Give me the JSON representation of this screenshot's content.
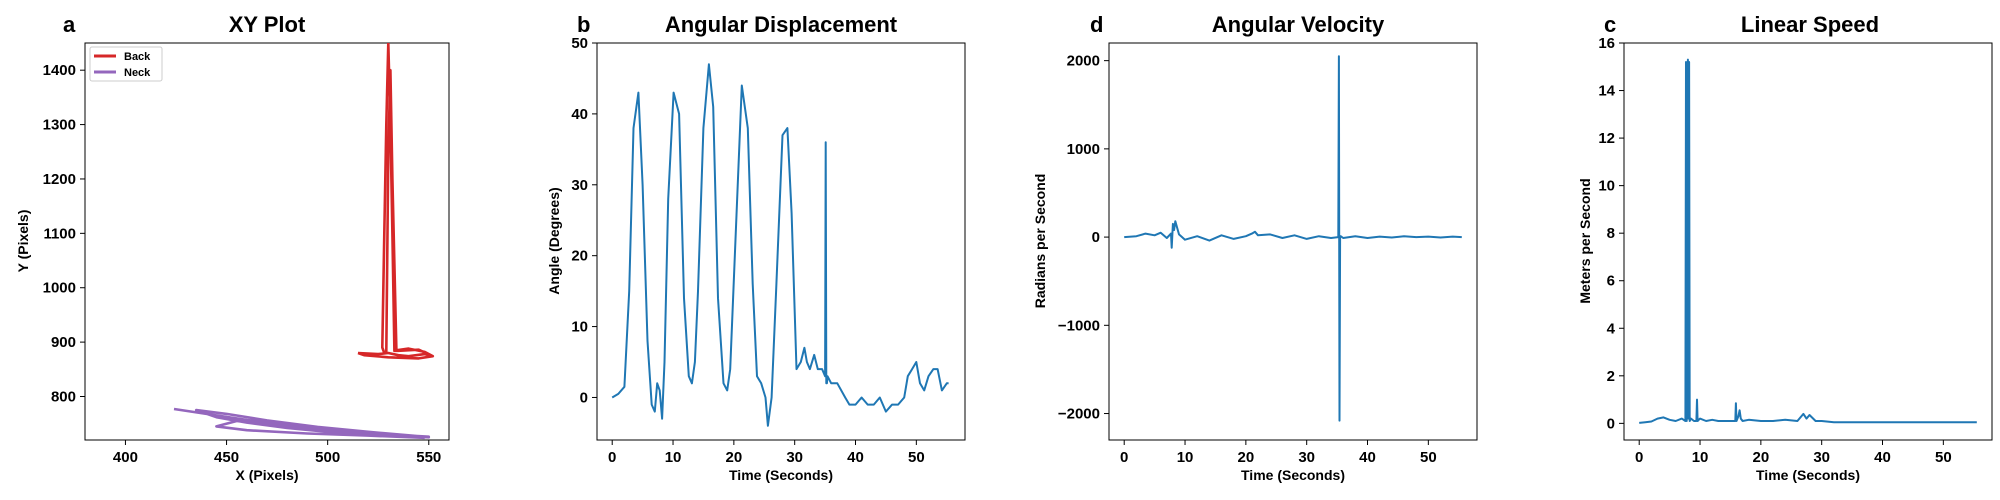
{
  "figure": {
    "panels": [
      {
        "letter": "a",
        "title": "XY Plot",
        "xlabel": "X (Pixels)",
        "ylabel": "Y (Pixels)"
      },
      {
        "letter": "b",
        "title": "Angular Displacement",
        "xlabel": "Time (Seconds)",
        "ylabel": "Angle (Degrees)"
      },
      {
        "letter": "d",
        "title": "Angular Velocity",
        "xlabel": "Time (Seconds)",
        "ylabel": "Radians per Second"
      },
      {
        "letter": "c",
        "title": "Linear Speed",
        "xlabel": "Time (Seconds)",
        "ylabel": "Meters per Second"
      }
    ],
    "legend": [
      {
        "name": "Back",
        "color": "#d62728"
      },
      {
        "name": "Neck",
        "color": "#9467bd"
      }
    ]
  },
  "chart_data": [
    {
      "type": "line",
      "title": "XY Plot",
      "xlabel": "X (Pixels)",
      "ylabel": "Y (Pixels)",
      "xlim": [
        380,
        560
      ],
      "ylim": [
        720,
        1450
      ],
      "xticks": [
        400,
        450,
        500,
        550
      ],
      "yticks": [
        800,
        900,
        1000,
        1100,
        1200,
        1300,
        1400
      ],
      "legend_position": "top-left",
      "series": [
        {
          "name": "Back",
          "color": "#d62728",
          "x": [
            515,
            525,
            530,
            535,
            540,
            548,
            552,
            545,
            535,
            533,
            532,
            531,
            530,
            529,
            528,
            527,
            528,
            529,
            530,
            531,
            532,
            534,
            540,
            548,
            552,
            545,
            530,
            518,
            515
          ],
          "y": [
            880,
            878,
            880,
            876,
            874,
            878,
            874,
            886,
            884,
            884,
            1100,
            1300,
            1450,
            1300,
            1100,
            890,
            880,
            882,
            1250,
            1400,
            1200,
            885,
            888,
            882,
            874,
            870,
            872,
            876,
            880
          ]
        },
        {
          "name": "Neck",
          "color": "#9467bd",
          "x": [
            424,
            440,
            460,
            480,
            500,
            520,
            540,
            550,
            530,
            500,
            480,
            460,
            445,
            435,
            450,
            470,
            495,
            520,
            545,
            550,
            525,
            495,
            470,
            455,
            445,
            460,
            490,
            520,
            548
          ],
          "y": [
            777,
            768,
            757,
            748,
            740,
            733,
            728,
            726,
            728,
            735,
            742,
            752,
            762,
            775,
            768,
            756,
            744,
            735,
            727,
            725,
            730,
            738,
            748,
            755,
            745,
            738,
            732,
            728,
            724
          ]
        }
      ]
    },
    {
      "type": "line",
      "title": "Angular Displacement",
      "xlabel": "Time (Seconds)",
      "ylabel": "Angle (Degrees)",
      "xlim": [
        -2.5,
        58
      ],
      "ylim": [
        -6,
        50
      ],
      "xticks": [
        0,
        10,
        20,
        30,
        40,
        50
      ],
      "yticks": [
        0,
        10,
        20,
        30,
        40,
        50
      ],
      "series": [
        {
          "name": "",
          "color": "#1f77b4",
          "x": [
            0,
            1,
            2,
            2.8,
            3.5,
            4.3,
            5,
            5.8,
            6.5,
            7,
            7.4,
            7.8,
            8.2,
            8.6,
            9.2,
            10.1,
            11,
            11.8,
            12.6,
            13.1,
            13.6,
            14.1,
            15,
            15.9,
            16.6,
            17.4,
            18.3,
            18.9,
            19.4,
            20.3,
            21.3,
            22.3,
            23.1,
            23.8,
            24.5,
            25.2,
            25.6,
            26.2,
            27,
            28,
            28.8,
            29.5,
            30.3,
            31,
            31.6,
            32,
            32.5,
            33.2,
            33.8,
            34.5,
            35,
            35.1,
            35.2,
            35.3,
            35.4,
            36,
            37,
            38.3,
            39,
            40,
            41,
            42,
            43,
            44,
            45,
            46,
            47,
            48,
            48.6,
            49.3,
            50,
            50.6,
            51.3,
            52,
            52.8,
            53.5,
            54.2,
            55,
            55.3
          ],
          "y": [
            0,
            0.5,
            1.5,
            15,
            38,
            43,
            30,
            8,
            -1,
            -2,
            2,
            1,
            -3,
            5,
            28,
            43,
            40,
            14,
            3,
            2,
            5,
            15,
            38,
            47,
            41,
            14,
            2,
            1,
            4,
            23,
            44,
            38,
            16,
            3,
            2,
            0,
            -4,
            0,
            16,
            37,
            38,
            26,
            4,
            5,
            7,
            5,
            4,
            6,
            4,
            4,
            3,
            36,
            2,
            2,
            3,
            2,
            2,
            0,
            -1,
            -1,
            0,
            -1,
            -1,
            0,
            -2,
            -1,
            -1,
            0,
            3,
            4,
            5,
            2,
            1,
            3,
            4,
            4,
            1,
            2,
            2
          ]
        }
      ]
    },
    {
      "type": "line",
      "title": "Angular Velocity",
      "xlabel": "Time (Seconds)",
      "ylabel": "Radians per Second",
      "xlim": [
        -2.5,
        58
      ],
      "ylim": [
        -2300,
        2200
      ],
      "xticks": [
        0,
        10,
        20,
        30,
        40,
        50
      ],
      "yticks": [
        -2000,
        -1000,
        0,
        1000,
        2000
      ],
      "series": [
        {
          "name": "",
          "color": "#1f77b4",
          "x": [
            0,
            2,
            3.5,
            5,
            6,
            7,
            7.7,
            7.8,
            8,
            8.2,
            8.4,
            9,
            10,
            12,
            14,
            16,
            18,
            20,
            21,
            21.5,
            22,
            24,
            26,
            28,
            30,
            32,
            34,
            35.2,
            35.3,
            35.4,
            35.5,
            35.6,
            36,
            38,
            40,
            42,
            44,
            46,
            48,
            50,
            52,
            54,
            55.5
          ],
          "y": [
            0,
            10,
            40,
            20,
            50,
            -10,
            40,
            -120,
            150,
            80,
            180,
            30,
            -30,
            10,
            -40,
            20,
            -20,
            10,
            40,
            60,
            20,
            30,
            -10,
            20,
            -20,
            10,
            -10,
            0,
            2050,
            -2080,
            0,
            10,
            -10,
            10,
            -10,
            5,
            -5,
            10,
            0,
            5,
            -5,
            5,
            0
          ]
        }
      ]
    },
    {
      "type": "line",
      "title": "Linear Speed",
      "xlabel": "Time (Seconds)",
      "ylabel": "Meters per Second",
      "xlim": [
        -2.5,
        58
      ],
      "ylim": [
        -0.7,
        16
      ],
      "xticks": [
        0,
        10,
        20,
        30,
        40,
        50
      ],
      "yticks": [
        0,
        2,
        4,
        6,
        8,
        10,
        12,
        14,
        16
      ],
      "series": [
        {
          "name": "",
          "color": "#1f77b4",
          "x": [
            0,
            1,
            2,
            3,
            4,
            5,
            6,
            7,
            7.6,
            7.7,
            7.8,
            8,
            8.1,
            8.2,
            8.3,
            8.5,
            9,
            9.4,
            9.5,
            9.6,
            10,
            11,
            12,
            13,
            14,
            15,
            15.8,
            15.9,
            16,
            16.3,
            16.5,
            16.7,
            17,
            18,
            20,
            22,
            24,
            26,
            27,
            27.5,
            28,
            29,
            30,
            32,
            35,
            40,
            45,
            50,
            55.5
          ],
          "y": [
            0.02,
            0.05,
            0.08,
            0.2,
            0.25,
            0.15,
            0.1,
            0.2,
            0.1,
            15.2,
            0.1,
            15.3,
            0.2,
            15.2,
            0.1,
            0.2,
            0.1,
            0.1,
            1.0,
            0.1,
            0.2,
            0.1,
            0.15,
            0.1,
            0.1,
            0.1,
            0.1,
            0.85,
            0.1,
            0.3,
            0.55,
            0.2,
            0.1,
            0.15,
            0.1,
            0.1,
            0.15,
            0.1,
            0.4,
            0.2,
            0.35,
            0.1,
            0.1,
            0.05,
            0.05,
            0.05,
            0.05,
            0.05,
            0.05
          ]
        }
      ]
    }
  ]
}
